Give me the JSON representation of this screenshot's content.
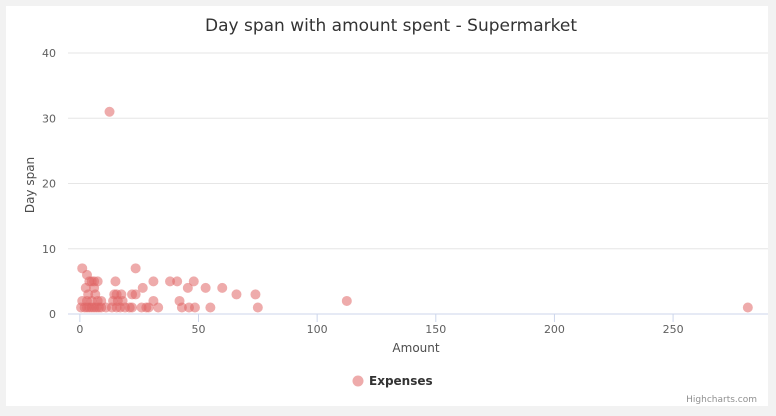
{
  "chart_data": {
    "type": "scatter",
    "title": "Day span with amount spent - Supermarket",
    "xlabel": "Amount",
    "ylabel": "Day span",
    "xlim": [
      -5,
      290
    ],
    "ylim": [
      0,
      40
    ],
    "x_ticks": [
      0,
      50,
      100,
      150,
      200,
      250
    ],
    "y_ticks": [
      0,
      10,
      20,
      30,
      40
    ],
    "grid": true,
    "legend": "bottom-center",
    "series": [
      {
        "name": "Expenses",
        "color": "#e06666",
        "points": [
          [
            12.5,
            31
          ],
          [
            1,
            7
          ],
          [
            23.5,
            7
          ],
          [
            3,
            6
          ],
          [
            4,
            5
          ],
          [
            5,
            5
          ],
          [
            6,
            5
          ],
          [
            7.5,
            5
          ],
          [
            15,
            5
          ],
          [
            31,
            5
          ],
          [
            38,
            5
          ],
          [
            41,
            5
          ],
          [
            48,
            5
          ],
          [
            2.5,
            4
          ],
          [
            6,
            4
          ],
          [
            26.5,
            4
          ],
          [
            45.5,
            4
          ],
          [
            53,
            4
          ],
          [
            60,
            4
          ],
          [
            3.5,
            3
          ],
          [
            6.5,
            3
          ],
          [
            14.5,
            3
          ],
          [
            15.5,
            3
          ],
          [
            17.5,
            3
          ],
          [
            22,
            3
          ],
          [
            23.5,
            3
          ],
          [
            66,
            3
          ],
          [
            74,
            3
          ],
          [
            1,
            2
          ],
          [
            3,
            2
          ],
          [
            5,
            2
          ],
          [
            7.5,
            2
          ],
          [
            9,
            2
          ],
          [
            14,
            2
          ],
          [
            16,
            2
          ],
          [
            18,
            2
          ],
          [
            31,
            2
          ],
          [
            42,
            2
          ],
          [
            112.5,
            2
          ],
          [
            0.5,
            1
          ],
          [
            2,
            1
          ],
          [
            3,
            1
          ],
          [
            4,
            1
          ],
          [
            5,
            1
          ],
          [
            6,
            1
          ],
          [
            7,
            1
          ],
          [
            8,
            1
          ],
          [
            9,
            1
          ],
          [
            11,
            1
          ],
          [
            13.5,
            1
          ],
          [
            15.5,
            1
          ],
          [
            17,
            1
          ],
          [
            19,
            1
          ],
          [
            21,
            1
          ],
          [
            22,
            1
          ],
          [
            26,
            1
          ],
          [
            28,
            1
          ],
          [
            29,
            1
          ],
          [
            33,
            1
          ],
          [
            43,
            1
          ],
          [
            46,
            1
          ],
          [
            48.5,
            1
          ],
          [
            55,
            1
          ],
          [
            75,
            1
          ],
          [
            281.5,
            1
          ]
        ]
      }
    ]
  },
  "credits": "Highcharts.com"
}
